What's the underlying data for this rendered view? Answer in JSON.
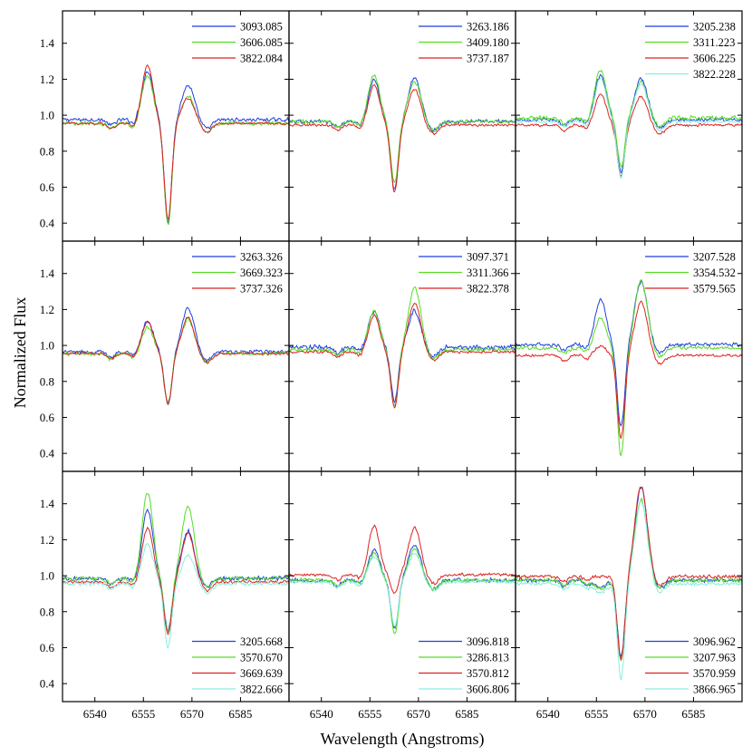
{
  "chart_data": {
    "type": "line",
    "title": "",
    "xlabel": "Wavelength (Angstroms)",
    "ylabel": "Normalized Flux",
    "grid": false,
    "xlim": [
      6530,
      6600
    ],
    "ylim": [
      0.3,
      1.58
    ],
    "x_ticks": [
      6540,
      6555,
      6570,
      6585
    ],
    "y_ticks": [
      0.4,
      0.6,
      0.8,
      1.0,
      1.2,
      1.4
    ],
    "x_tick_labels": [
      "6540",
      "6555",
      "6570",
      "6585"
    ],
    "y_tick_labels": [
      "0.4",
      "0.6",
      "0.8",
      "1.0",
      "1.2",
      "1.4"
    ],
    "colors": {
      "blue": "#1f3fe0",
      "green": "#55dd22",
      "red": "#dd2222",
      "cyan": "#88eedd",
      "axis": "#000000"
    },
    "panels": [
      {
        "name": "row1-col1",
        "legend": "top-right",
        "series": [
          {
            "name": "3093.085",
            "color": "blue",
            "cont": 0.975,
            "e1": 0.27,
            "e2": 0.19,
            "abs": 0.57,
            "noise": 0.012
          },
          {
            "name": "3606.085",
            "color": "green",
            "cont": 0.955,
            "e1": 0.27,
            "e2": 0.15,
            "abs": 0.56,
            "noise": 0.013
          },
          {
            "name": "3822.084",
            "color": "red",
            "cont": 0.955,
            "e1": 0.32,
            "e2": 0.14,
            "abs": 0.53,
            "noise": 0.008
          }
        ]
      },
      {
        "name": "row1-col2",
        "legend": "top-right",
        "series": [
          {
            "name": "3263.186",
            "color": "blue",
            "cont": 0.965,
            "e1": 0.23,
            "e2": 0.24,
            "abs": 0.38,
            "noise": 0.012
          },
          {
            "name": "3409.180",
            "color": "green",
            "cont": 0.965,
            "e1": 0.26,
            "e2": 0.22,
            "abs": 0.34,
            "noise": 0.012
          },
          {
            "name": "3737.187",
            "color": "red",
            "cont": 0.945,
            "e1": 0.22,
            "e2": 0.2,
            "abs": 0.37,
            "noise": 0.008
          }
        ]
      },
      {
        "name": "row1-col3",
        "legend": "top-right",
        "series": [
          {
            "name": "3205.238",
            "color": "blue",
            "cont": 0.975,
            "e1": 0.25,
            "e2": 0.23,
            "abs": 0.29,
            "noise": 0.012
          },
          {
            "name": "3311.223",
            "color": "green",
            "cont": 0.985,
            "e1": 0.27,
            "e2": 0.2,
            "abs": 0.27,
            "noise": 0.013
          },
          {
            "name": "3606.225",
            "color": "red",
            "cont": 0.945,
            "e1": 0.17,
            "e2": 0.16,
            "abs": 0.28,
            "noise": 0.009
          },
          {
            "name": "3822.228",
            "color": "cyan",
            "cont": 0.965,
            "e1": 0.24,
            "e2": 0.21,
            "abs": 0.31,
            "noise": 0.009
          }
        ]
      },
      {
        "name": "row2-col1",
        "legend": "top-right",
        "series": [
          {
            "name": "3263.326",
            "color": "blue",
            "cont": 0.965,
            "e1": 0.17,
            "e2": 0.24,
            "abs": 0.3,
            "noise": 0.012
          },
          {
            "name": "3669.323",
            "color": "green",
            "cont": 0.955,
            "e1": 0.15,
            "e2": 0.19,
            "abs": 0.27,
            "noise": 0.013
          },
          {
            "name": "3737.326",
            "color": "red",
            "cont": 0.955,
            "e1": 0.18,
            "e2": 0.2,
            "abs": 0.28,
            "noise": 0.008
          }
        ]
      },
      {
        "name": "row2-col2",
        "legend": "top-right",
        "series": [
          {
            "name": "3097.371",
            "color": "blue",
            "cont": 0.99,
            "e1": 0.2,
            "e2": 0.2,
            "abs": 0.3,
            "noise": 0.016
          },
          {
            "name": "3311.366",
            "color": "green",
            "cont": 0.975,
            "e1": 0.22,
            "e2": 0.35,
            "abs": 0.31,
            "noise": 0.012
          },
          {
            "name": "3822.378",
            "color": "red",
            "cont": 0.965,
            "e1": 0.2,
            "e2": 0.27,
            "abs": 0.31,
            "noise": 0.009
          }
        ]
      },
      {
        "name": "row2-col3",
        "legend": "top-right",
        "series": [
          {
            "name": "3207.528",
            "color": "blue",
            "cont": 1.005,
            "e1": 0.25,
            "e2": 0.35,
            "abs": 0.46,
            "noise": 0.012
          },
          {
            "name": "3354.532",
            "color": "green",
            "cont": 0.985,
            "e1": 0.17,
            "e2": 0.38,
            "abs": 0.6,
            "noise": 0.012
          },
          {
            "name": "3579.565",
            "color": "red",
            "cont": 0.945,
            "e1": 0.05,
            "e2": 0.3,
            "abs": 0.46,
            "noise": 0.009
          }
        ]
      },
      {
        "name": "row3-col1",
        "legend": "bottom-right",
        "series": [
          {
            "name": "3205.668",
            "color": "blue",
            "cont": 0.985,
            "e1": 0.38,
            "e2": 0.26,
            "abs": 0.29,
            "noise": 0.013
          },
          {
            "name": "3570.670",
            "color": "green",
            "cont": 0.985,
            "e1": 0.48,
            "e2": 0.4,
            "abs": 0.3,
            "noise": 0.013
          },
          {
            "name": "3669.639",
            "color": "red",
            "cont": 0.965,
            "e1": 0.3,
            "e2": 0.27,
            "abs": 0.29,
            "noise": 0.009
          },
          {
            "name": "3822.666",
            "color": "cyan",
            "cont": 0.955,
            "e1": 0.22,
            "e2": 0.16,
            "abs": 0.35,
            "noise": 0.012
          }
        ]
      },
      {
        "name": "row3-col2",
        "legend": "bottom-right",
        "series": [
          {
            "name": "3096.818",
            "color": "blue",
            "cont": 0.975,
            "e1": 0.17,
            "e2": 0.2,
            "abs": 0.27,
            "noise": 0.013
          },
          {
            "name": "3286.813",
            "color": "green",
            "cont": 0.975,
            "e1": 0.15,
            "e2": 0.17,
            "abs": 0.3,
            "noise": 0.012
          },
          {
            "name": "3570.812",
            "color": "red",
            "cont": 1.005,
            "e1": 0.27,
            "e2": 0.26,
            "abs": 0.1,
            "noise": 0.01
          },
          {
            "name": "3606.806",
            "color": "cyan",
            "cont": 0.965,
            "e1": 0.14,
            "e2": 0.16,
            "abs": 0.25,
            "noise": 0.011
          }
        ]
      },
      {
        "name": "row3-col3",
        "legend": "bottom-right",
        "series": [
          {
            "name": "3096.962",
            "color": "blue",
            "cont": 0.975,
            "e1": -0.04,
            "e2": 0.52,
            "abs": 0.42,
            "noise": 0.014
          },
          {
            "name": "3207.963",
            "color": "green",
            "cont": 0.975,
            "e1": -0.05,
            "e2": 0.45,
            "abs": 0.45,
            "noise": 0.014
          },
          {
            "name": "3570.959",
            "color": "red",
            "cont": 0.995,
            "e1": 0.0,
            "e2": 0.5,
            "abs": 0.46,
            "noise": 0.011
          },
          {
            "name": "3866.965",
            "color": "cyan",
            "cont": 0.955,
            "e1": -0.05,
            "e2": 0.46,
            "abs": 0.53,
            "noise": 0.012
          }
        ]
      }
    ]
  }
}
